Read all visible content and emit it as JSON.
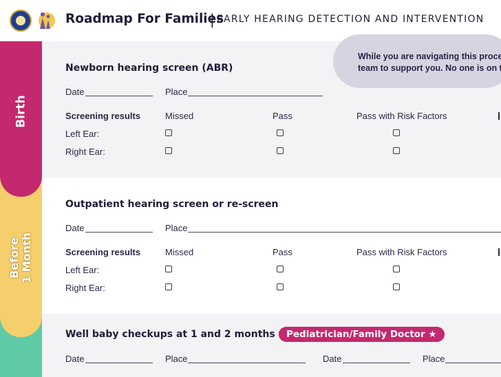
{
  "header": {
    "title": "Roadmap For Families",
    "separator": "|",
    "subtitle": "EARLY HEARING DETECTION AND INTERVENTION"
  },
  "stages": {
    "birth": "Birth",
    "before_1_month_line1": "Before",
    "before_1_month_line2": "1 Month"
  },
  "colors": {
    "birth": "#c4286e",
    "before_1_month": "#f5cf6b",
    "next_stage": "#5fcaa5",
    "callout": "#d6d4e0",
    "pill": "#c4286e"
  },
  "callout": {
    "line1": "While you are navigating this proce",
    "line2": "team to support you. No one is on t"
  },
  "newborn_screen": {
    "heading": "Newborn hearing screen (ABR)",
    "date_label": "Date",
    "place_label": "Place",
    "results_label": "Screening results",
    "options": [
      "Missed",
      "Pass",
      "Pass with Risk Factors"
    ],
    "left_ear": "Left Ear:",
    "right_ear": "Right Ear:"
  },
  "outpatient_screen": {
    "heading": "Outpatient hearing screen or re-screen",
    "date_label": "Date",
    "place_label": "Place",
    "results_label": "Screening results",
    "options": [
      "Missed",
      "Pass",
      "Pass with Risk Factors"
    ],
    "left_ear": "Left Ear:",
    "right_ear": "Right Ear:"
  },
  "well_baby": {
    "heading": "Well baby checkups at 1 and 2 months with",
    "provider_pill": "Pediatrician/Family Doctor ★",
    "date_label_1": "Date",
    "place_label_1": "Place",
    "date_label_2": "Date",
    "place_label_2": "Place"
  }
}
